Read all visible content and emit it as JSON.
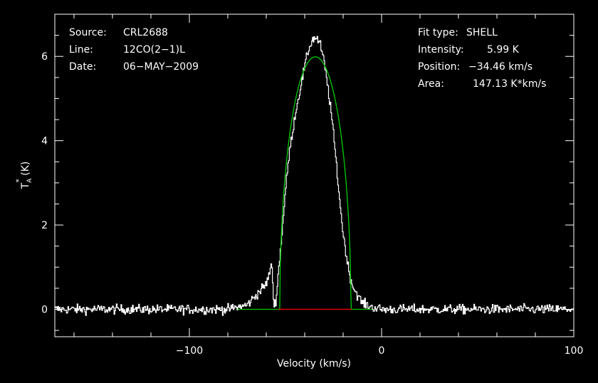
{
  "chart_data": {
    "type": "line",
    "xlabel": "Velocity (km/s)",
    "ylabel": {
      "base": "T",
      "sub": "A",
      "sup": "*",
      "unit": " (K)"
    },
    "xlim": [
      -170,
      100
    ],
    "ylim": [
      -0.65,
      7.0
    ],
    "xticks": [
      -100,
      0,
      100
    ],
    "xtick_labels": [
      "−100",
      "0",
      "100"
    ],
    "yticks": [
      0,
      2,
      4,
      6
    ],
    "ytick_labels": [
      "0",
      "2",
      "4",
      "6"
    ],
    "grid": false,
    "info_left": [
      {
        "key": "Source:",
        "value": "CRL2688"
      },
      {
        "key": "Line:",
        "value": "12CO(2−1)L"
      },
      {
        "key": "Date:",
        "value": "06−MAY−2009"
      }
    ],
    "info_right": [
      {
        "key": "Fit type:",
        "value": "SHELL"
      },
      {
        "key": "Intensity:",
        "value": "5.99 K"
      },
      {
        "key": "Position:",
        "value": "−34.46 km/s"
      },
      {
        "key": "Area:",
        "value": "147.13 K*km/s"
      }
    ],
    "series": [
      {
        "role": "observed-spectrum",
        "color": "#ffffff",
        "noise_rms": 0.08,
        "x": [
          -170,
          -80,
          -70,
          -60,
          -57,
          -56,
          -55,
          -52,
          -50,
          -48,
          -45,
          -42,
          -40,
          -38,
          -36,
          -34,
          -32,
          -30,
          -28,
          -26,
          -24,
          -22,
          -20,
          -17,
          -15,
          -12,
          -10,
          -5,
          0,
          100
        ],
        "y": [
          0,
          0,
          0.1,
          0.6,
          1.05,
          0.05,
          0.2,
          1.7,
          2.8,
          3.7,
          4.6,
          5.3,
          5.75,
          6.15,
          6.4,
          6.45,
          6.3,
          5.9,
          5.3,
          4.6,
          3.7,
          2.7,
          1.8,
          0.9,
          0.55,
          0.3,
          0.15,
          0.05,
          0,
          0
        ]
      },
      {
        "role": "shell-fit",
        "color": "#00cc00",
        "center": -34.46,
        "peak": 5.99,
        "half_width": 18.5,
        "horn_ratio": 0.0,
        "baseline_range": [
          -75,
          -5
        ]
      },
      {
        "role": "fit-window",
        "color": "#e00000",
        "range": [
          -53.5,
          -15.5
        ],
        "y": 0
      }
    ]
  }
}
